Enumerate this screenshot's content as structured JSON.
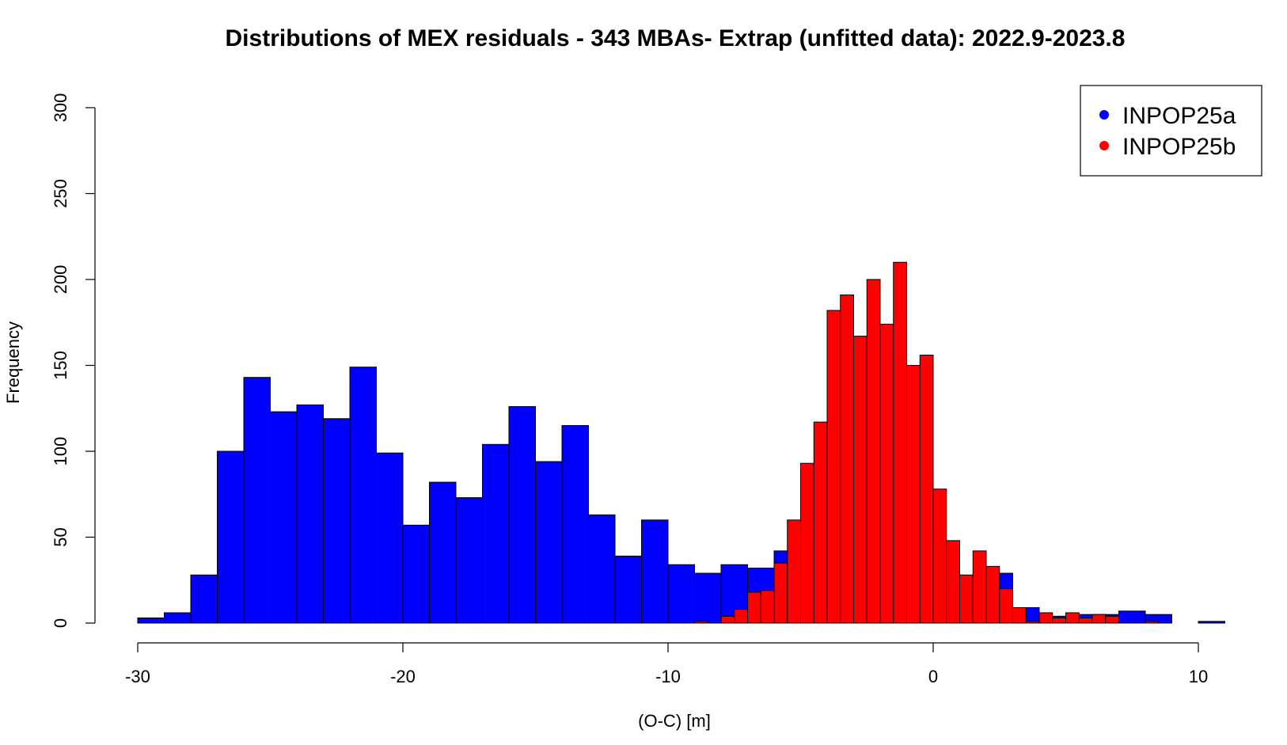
{
  "chart_data": {
    "type": "bar",
    "subtype": "overlapping-histogram",
    "title": "Distributions of MEX residuals - 343 MBAs- Extrap (unfitted data): 2022.9-2023.8",
    "xlabel": "(O-C) [m]",
    "ylabel": "Frequency",
    "xlim": [
      -30,
      11
    ],
    "ylim": [
      0,
      300
    ],
    "x_ticks": [
      -30,
      -20,
      -10,
      0,
      10
    ],
    "y_ticks": [
      0,
      50,
      100,
      150,
      200,
      250,
      300
    ],
    "grid": false,
    "legend_position": "top-right",
    "series": [
      {
        "name": "INPOP25a",
        "color": "#0000ff",
        "bin_width": 1,
        "bin_start": -30,
        "values": [
          3,
          6,
          28,
          100,
          143,
          123,
          127,
          119,
          149,
          99,
          57,
          82,
          73,
          104,
          126,
          94,
          115,
          63,
          39,
          60,
          34,
          29,
          34,
          32,
          42,
          33,
          29,
          22,
          18,
          12,
          9,
          5,
          29,
          9,
          4,
          5,
          5,
          7,
          5,
          0,
          1
        ]
      },
      {
        "name": "INPOP25b",
        "color": "#ff0000",
        "bin_width": 0.5,
        "bin_start": -9,
        "values": [
          1,
          0,
          4,
          8,
          18,
          19,
          35,
          60,
          93,
          117,
          182,
          191,
          167,
          200,
          174,
          210,
          150,
          156,
          78,
          48,
          28,
          42,
          33,
          20,
          9,
          1,
          6,
          3,
          6,
          3,
          5,
          4,
          0,
          0,
          1
        ]
      }
    ]
  }
}
